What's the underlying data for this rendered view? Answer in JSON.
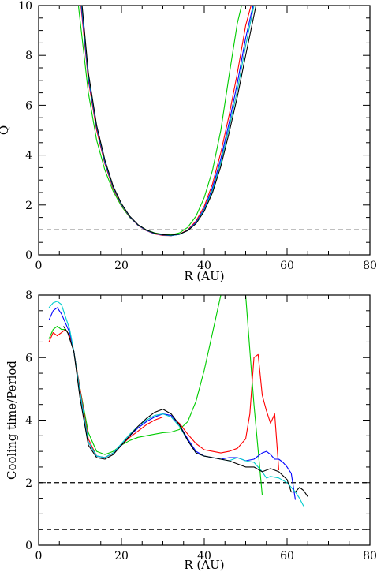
{
  "chart_data": [
    {
      "type": "line",
      "xlabel": "R (AU)",
      "ylabel": "Q",
      "xlim": [
        0,
        80
      ],
      "ylim": [
        0,
        10
      ],
      "xticks": [
        0,
        20,
        40,
        60,
        80
      ],
      "yticks": [
        0,
        2,
        4,
        6,
        8,
        10
      ],
      "xtick_labels": [
        "0",
        "20",
        "40",
        "60",
        "80"
      ],
      "ytick_labels": [
        "0",
        "2",
        "4",
        "6",
        "8",
        "10"
      ],
      "hlines": [
        1.0
      ],
      "grid": false,
      "series": [
        {
          "color": "#00cc00",
          "x": [
            9.6,
            12,
            14,
            16,
            18,
            20,
            22,
            24,
            26,
            28,
            30,
            32,
            34,
            36,
            38,
            40,
            42,
            44,
            46,
            48,
            49
          ],
          "y": [
            10,
            6.5,
            4.6,
            3.4,
            2.55,
            1.95,
            1.5,
            1.2,
            1.0,
            0.88,
            0.82,
            0.8,
            0.88,
            1.1,
            1.55,
            2.3,
            3.4,
            5.0,
            7.2,
            9.3,
            10
          ]
        },
        {
          "color": "#ff0000",
          "x": [
            10.2,
            12,
            14,
            16,
            18,
            20,
            22,
            24,
            26,
            28,
            30,
            32,
            34,
            36,
            38,
            40,
            42,
            44,
            46,
            48,
            50,
            51.3
          ],
          "y": [
            10,
            7.0,
            5.0,
            3.65,
            2.65,
            2.0,
            1.52,
            1.18,
            0.97,
            0.84,
            0.78,
            0.77,
            0.83,
            1.0,
            1.35,
            1.95,
            2.85,
            4.1,
            5.6,
            7.3,
            9.2,
            10
          ]
        },
        {
          "color": "#0000ff",
          "x": [
            10.3,
            12,
            14,
            16,
            18,
            20,
            22,
            24,
            26,
            28,
            30,
            32,
            34,
            36,
            38,
            40,
            42,
            44,
            46,
            48,
            50,
            51.8
          ],
          "y": [
            10,
            7.1,
            5.1,
            3.7,
            2.7,
            2.02,
            1.53,
            1.19,
            0.98,
            0.85,
            0.79,
            0.77,
            0.82,
            0.98,
            1.3,
            1.85,
            2.7,
            3.85,
            5.3,
            6.9,
            8.7,
            10
          ]
        },
        {
          "color": "#00bbbb",
          "x": [
            10.4,
            12,
            14,
            16,
            18,
            20,
            22,
            24,
            26,
            28,
            30,
            32,
            34,
            36,
            38,
            40,
            42,
            44,
            46,
            48,
            50,
            52
          ],
          "y": [
            10,
            7.2,
            5.15,
            3.75,
            2.72,
            2.03,
            1.54,
            1.2,
            0.99,
            0.86,
            0.8,
            0.78,
            0.82,
            0.97,
            1.27,
            1.8,
            2.6,
            3.7,
            5.1,
            6.6,
            8.4,
            10
          ]
        },
        {
          "color": "#000000",
          "x": [
            10.5,
            12,
            14,
            16,
            18,
            20,
            22,
            24,
            26,
            28,
            30,
            32,
            34,
            36,
            38,
            40,
            42,
            44,
            46,
            48,
            50,
            52.5
          ],
          "y": [
            10,
            7.3,
            5.2,
            3.8,
            2.75,
            2.05,
            1.55,
            1.21,
            1.0,
            0.87,
            0.81,
            0.79,
            0.83,
            0.97,
            1.25,
            1.75,
            2.5,
            3.55,
            4.9,
            6.35,
            8.0,
            10
          ]
        }
      ]
    },
    {
      "type": "line",
      "xlabel": "R (AU)",
      "ylabel": "Cooling time/Period",
      "xlim": [
        0,
        80
      ],
      "ylim": [
        0,
        8
      ],
      "xticks": [
        0,
        20,
        40,
        60,
        80
      ],
      "yticks": [
        0,
        2,
        4,
        6,
        8
      ],
      "xtick_labels": [
        "0",
        "20",
        "40",
        "60",
        "80"
      ],
      "ytick_labels": [
        "0",
        "2",
        "4",
        "6",
        "8"
      ],
      "hlines": [
        2.0,
        0.5
      ],
      "grid": false,
      "series": [
        {
          "color": "#00cc00",
          "x": [
            2.5,
            3.5,
            4.5,
            5.5,
            6.5,
            7.5,
            8.5,
            10,
            12,
            14,
            16,
            18,
            20,
            22,
            24,
            26,
            28,
            30,
            32,
            34,
            36,
            38,
            40,
            42,
            44,
            46,
            47,
            48,
            49,
            50,
            52,
            54
          ],
          "y": [
            6.6,
            6.9,
            7.0,
            6.9,
            6.9,
            6.7,
            6.2,
            5.0,
            3.6,
            3.0,
            2.9,
            3.0,
            3.2,
            3.35,
            3.45,
            3.5,
            3.55,
            3.6,
            3.62,
            3.7,
            3.95,
            4.6,
            5.6,
            6.8,
            8,
            8,
            8,
            8,
            8,
            8,
            4.5,
            1.6
          ]
        },
        {
          "color": "#ff0000",
          "x": [
            2.5,
            3.5,
            4.5,
            5.5,
            6.5,
            7.5,
            8.5,
            10,
            12,
            14,
            16,
            18,
            20,
            22,
            24,
            26,
            28,
            30,
            32,
            34,
            36,
            38,
            40,
            42,
            44,
            46,
            48,
            50,
            51,
            52,
            53,
            54,
            55,
            56,
            57,
            58
          ],
          "y": [
            6.5,
            6.8,
            6.7,
            6.8,
            6.9,
            6.7,
            6.2,
            5.0,
            3.4,
            2.85,
            2.8,
            2.95,
            3.2,
            3.45,
            3.65,
            3.85,
            4.0,
            4.1,
            4.1,
            3.9,
            3.55,
            3.25,
            3.05,
            3.0,
            2.95,
            3.0,
            3.1,
            3.4,
            4.2,
            6.0,
            6.1,
            4.8,
            4.3,
            3.9,
            4.2,
            2.4
          ]
        },
        {
          "color": "#0000ff",
          "x": [
            2.5,
            3.5,
            4.5,
            5.5,
            6.5,
            7.5,
            8.5,
            10,
            12,
            14,
            16,
            18,
            20,
            22,
            24,
            26,
            28,
            30,
            32,
            34,
            36,
            38,
            40,
            42,
            44,
            46,
            48,
            50,
            52,
            54,
            55,
            56,
            57,
            58,
            59,
            60,
            61,
            62
          ],
          "y": [
            7.2,
            7.5,
            7.6,
            7.4,
            7.1,
            6.8,
            6.2,
            4.9,
            3.3,
            2.85,
            2.8,
            2.95,
            3.2,
            3.5,
            3.75,
            3.95,
            4.1,
            4.2,
            4.15,
            3.85,
            3.4,
            3.0,
            2.85,
            2.8,
            2.75,
            2.8,
            2.8,
            2.7,
            2.75,
            2.95,
            3.0,
            2.9,
            2.75,
            2.75,
            2.65,
            2.5,
            2.3,
            1.45
          ]
        },
        {
          "color": "#00cccc",
          "x": [
            2.5,
            3.5,
            4.5,
            5.5,
            6.5,
            7.5,
            8.5,
            10,
            12,
            14,
            16,
            18,
            20,
            22,
            24,
            26,
            28,
            30,
            32,
            34,
            36,
            38,
            40,
            42,
            44,
            46,
            48,
            50,
            52,
            54,
            55,
            56,
            58,
            60,
            62,
            63,
            64
          ],
          "y": [
            7.6,
            7.75,
            7.8,
            7.7,
            7.3,
            6.9,
            6.2,
            4.9,
            3.3,
            2.85,
            2.8,
            2.95,
            3.25,
            3.55,
            3.8,
            4.0,
            4.15,
            4.2,
            4.1,
            3.8,
            3.35,
            2.95,
            2.85,
            2.8,
            2.75,
            2.7,
            2.8,
            2.7,
            2.65,
            2.35,
            2.15,
            2.2,
            2.15,
            2.0,
            1.7,
            1.5,
            1.25
          ]
        },
        {
          "color": "#000000",
          "x": [
            6.0,
            7,
            8.5,
            10,
            12,
            14,
            16,
            18,
            20,
            22,
            24,
            26,
            28,
            30,
            32,
            34,
            36,
            38,
            40,
            42,
            44,
            46,
            48,
            50,
            52,
            54,
            56,
            58,
            60,
            61,
            62,
            63,
            64,
            65
          ],
          "y": [
            7.0,
            6.8,
            6.2,
            4.7,
            3.2,
            2.8,
            2.75,
            2.9,
            3.2,
            3.5,
            3.8,
            4.05,
            4.25,
            4.35,
            4.2,
            3.85,
            3.35,
            2.95,
            2.85,
            2.8,
            2.75,
            2.7,
            2.6,
            2.5,
            2.5,
            2.35,
            2.45,
            2.35,
            2.1,
            1.7,
            1.7,
            1.85,
            1.75,
            1.55
          ]
        }
      ]
    }
  ]
}
